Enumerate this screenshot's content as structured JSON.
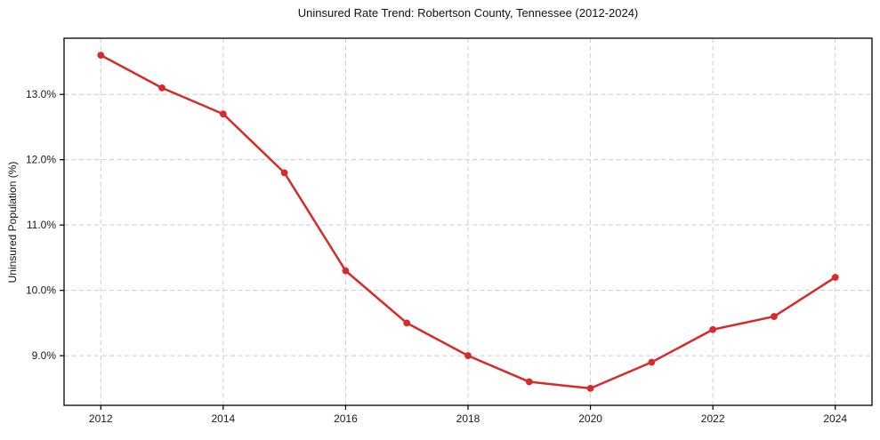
{
  "chart_data": {
    "type": "line",
    "title": "Uninsured Rate Trend: Robertson County, Tennessee (2012-2024)",
    "xlabel": "",
    "ylabel": "Uninsured Population (%)",
    "x": [
      2012,
      2013,
      2014,
      2015,
      2016,
      2017,
      2018,
      2019,
      2020,
      2021,
      2022,
      2023,
      2024
    ],
    "values": [
      13.6,
      13.1,
      12.7,
      11.8,
      10.3,
      9.5,
      9.0,
      8.6,
      8.5,
      8.9,
      9.4,
      9.6,
      10.2
    ],
    "xticks": [
      2012,
      2014,
      2016,
      2018,
      2020,
      2022,
      2024
    ],
    "xtick_labels": [
      "2012",
      "2014",
      "2016",
      "2018",
      "2020",
      "2022",
      "2024"
    ],
    "yticks": [
      9,
      10,
      11,
      12,
      13
    ],
    "ytick_labels": [
      "9.0%",
      "10.0%",
      "11.0%",
      "12.0%",
      "13.0%"
    ],
    "xlim": [
      2011.4,
      2024.6
    ],
    "ylim": [
      8.24,
      13.86
    ],
    "grid": true,
    "grid_style": "dashed",
    "legend": "none",
    "marker": "circle",
    "colors": {
      "line": "#d62b2b",
      "marker": "#d62b2b",
      "grid": "#cccccc",
      "axis": "#000000",
      "text": "#1a1a1a",
      "background": "#ffffff"
    }
  }
}
